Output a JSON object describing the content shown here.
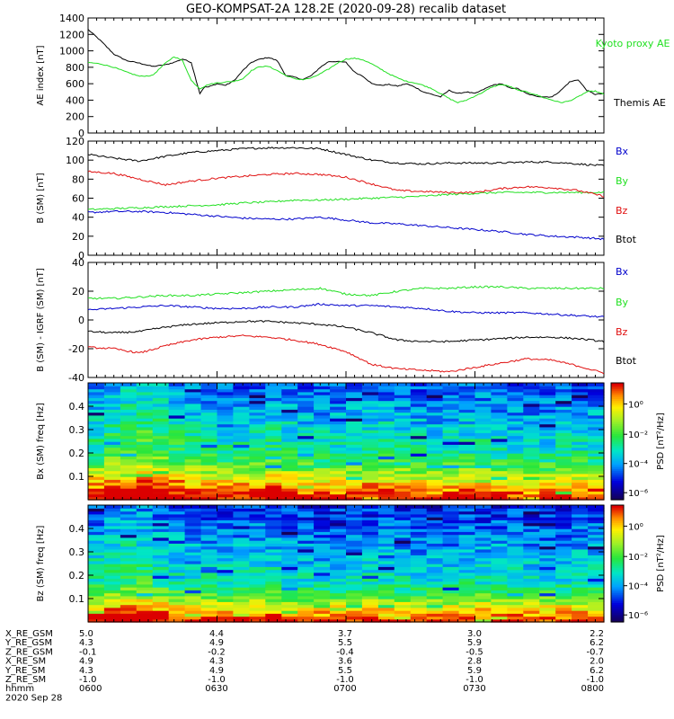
{
  "title": "GEO-KOMPSAT-2A 128.2E (2020-09-28) recalib dataset",
  "colors": {
    "black": "#000000",
    "green": "#22e022",
    "red": "#e01010",
    "blue": "#0000cc"
  },
  "chart_data": [
    {
      "type": "line",
      "panel": "ae",
      "ylabel": "AE index [nT]",
      "ylim": [
        0,
        1400
      ],
      "yticks": [
        "0",
        "200",
        "400",
        "600",
        "800",
        "1000",
        "1200",
        "1400"
      ],
      "xlim": [
        0,
        120
      ],
      "series": [
        {
          "name": "Themis AE",
          "color": "#000000",
          "x": [
            0,
            3,
            6,
            9,
            12,
            15,
            18,
            20,
            22,
            24,
            26,
            27,
            28,
            30,
            32,
            34,
            36,
            38,
            40,
            42,
            44,
            46,
            48,
            50,
            52,
            54,
            56,
            58,
            60,
            62,
            64,
            66,
            68,
            70,
            72,
            74,
            76,
            78,
            80,
            82,
            84,
            86,
            88,
            90,
            92,
            94,
            96,
            98,
            100,
            102,
            104,
            106,
            108,
            110,
            112,
            114,
            116,
            118,
            120
          ],
          "y": [
            1260,
            1120,
            960,
            880,
            850,
            810,
            830,
            860,
            900,
            860,
            480,
            560,
            560,
            600,
            580,
            640,
            760,
            860,
            900,
            920,
            880,
            700,
            680,
            650,
            700,
            800,
            870,
            870,
            860,
            740,
            690,
            600,
            580,
            590,
            570,
            600,
            560,
            500,
            470,
            440,
            520,
            480,
            500,
            480,
            530,
            580,
            600,
            550,
            540,
            480,
            450,
            440,
            440,
            520,
            620,
            650,
            520,
            470,
            480
          ]
        },
        {
          "name": "Kyoto proxy AE",
          "color": "#22e022",
          "x": [
            0,
            3,
            6,
            9,
            12,
            15,
            18,
            20,
            22,
            24,
            26,
            28,
            30,
            32,
            34,
            36,
            38,
            40,
            42,
            44,
            46,
            48,
            50,
            52,
            54,
            56,
            58,
            60,
            62,
            64,
            66,
            68,
            70,
            72,
            74,
            76,
            78,
            80,
            82,
            84,
            86,
            88,
            90,
            92,
            94,
            96,
            98,
            100,
            102,
            104,
            106,
            108,
            110,
            112,
            114,
            116,
            118,
            120
          ],
          "y": [
            860,
            840,
            800,
            740,
            690,
            700,
            850,
            930,
            880,
            640,
            540,
            590,
            610,
            620,
            630,
            660,
            760,
            810,
            810,
            760,
            700,
            660,
            650,
            670,
            720,
            780,
            850,
            900,
            910,
            890,
            840,
            780,
            720,
            670,
            630,
            610,
            580,
            540,
            480,
            420,
            370,
            400,
            450,
            500,
            560,
            590,
            570,
            520,
            500,
            470,
            430,
            400,
            370,
            390,
            440,
            500,
            510,
            470
          ]
        }
      ]
    },
    {
      "type": "line",
      "panel": "b",
      "ylabel": "B (SM) [nT]",
      "ylim": [
        0,
        120
      ],
      "yticks": [
        "0",
        "20",
        "40",
        "60",
        "80",
        "100",
        "120"
      ],
      "xlim": [
        0,
        120
      ],
      "legend": [
        "Bx",
        "By",
        "Bz",
        "Btot"
      ],
      "series": [
        {
          "name": "Btot",
          "color": "#000000",
          "x": [
            0,
            6,
            12,
            18,
            24,
            30,
            36,
            42,
            48,
            54,
            60,
            66,
            72,
            78,
            84,
            90,
            96,
            102,
            108,
            114,
            120
          ],
          "y": [
            106,
            102,
            99,
            104,
            108,
            110,
            112,
            113,
            113,
            112,
            106,
            100,
            97,
            96,
            97,
            97,
            97,
            98,
            98,
            96,
            94
          ]
        },
        {
          "name": "Bx",
          "color": "#0000cc",
          "x": [
            0,
            6,
            12,
            18,
            24,
            30,
            36,
            42,
            48,
            54,
            60,
            66,
            72,
            78,
            84,
            90,
            96,
            102,
            108,
            114,
            120
          ],
          "y": [
            45,
            46,
            46,
            45,
            43,
            41,
            39,
            38,
            38,
            40,
            37,
            34,
            33,
            31,
            29,
            27,
            25,
            22,
            20,
            19,
            17
          ]
        },
        {
          "name": "By",
          "color": "#22e022",
          "x": [
            0,
            6,
            12,
            18,
            24,
            30,
            36,
            42,
            48,
            54,
            60,
            66,
            72,
            78,
            84,
            90,
            96,
            102,
            108,
            114,
            120
          ],
          "y": [
            48,
            49,
            50,
            51,
            52,
            53,
            55,
            56,
            58,
            58,
            59,
            60,
            61,
            62,
            64,
            65,
            66,
            66,
            66,
            66,
            66
          ]
        },
        {
          "name": "Bz",
          "color": "#e01010",
          "x": [
            0,
            6,
            12,
            18,
            24,
            30,
            36,
            42,
            48,
            54,
            60,
            66,
            72,
            78,
            84,
            90,
            96,
            102,
            108,
            114,
            120
          ],
          "y": [
            88,
            86,
            80,
            74,
            78,
            81,
            83,
            85,
            86,
            85,
            82,
            75,
            68,
            67,
            66,
            66,
            70,
            72,
            71,
            68,
            62
          ]
        }
      ]
    },
    {
      "type": "line",
      "panel": "db",
      "ylabel": "B (SM) - IGRF (SM) [nT]",
      "ylim": [
        -40,
        40
      ],
      "yticks": [
        "-40",
        "-20",
        "0",
        "20",
        "40"
      ],
      "xlim": [
        0,
        120
      ],
      "legend": [
        "Bx",
        "By",
        "Bz",
        "Btot"
      ],
      "series": [
        {
          "name": "Bx",
          "color": "#0000cc",
          "x": [
            0,
            6,
            12,
            18,
            24,
            30,
            36,
            42,
            48,
            54,
            60,
            66,
            72,
            78,
            84,
            90,
            96,
            102,
            108,
            114,
            120
          ],
          "y": [
            7,
            8,
            9,
            10,
            9,
            8,
            8,
            9,
            9,
            11,
            10,
            10,
            9,
            8,
            6,
            5,
            5,
            5,
            4,
            3,
            2
          ]
        },
        {
          "name": "By",
          "color": "#22e022",
          "x": [
            0,
            6,
            12,
            18,
            24,
            30,
            36,
            42,
            48,
            54,
            60,
            66,
            72,
            78,
            84,
            90,
            96,
            102,
            108,
            114,
            120
          ],
          "y": [
            15,
            15,
            16,
            17,
            17,
            18,
            19,
            20,
            21,
            22,
            18,
            17,
            20,
            22,
            22,
            23,
            23,
            22,
            22,
            22,
            22
          ]
        },
        {
          "name": "Btot",
          "color": "#000000",
          "x": [
            0,
            6,
            12,
            18,
            24,
            30,
            36,
            42,
            48,
            54,
            60,
            66,
            72,
            78,
            84,
            90,
            96,
            102,
            108,
            114,
            120
          ],
          "y": [
            -8,
            -9,
            -8,
            -5,
            -3,
            -2,
            -1,
            -1,
            -2,
            -3,
            -5,
            -9,
            -14,
            -15,
            -15,
            -14,
            -13,
            -12,
            -12,
            -13,
            -15
          ]
        },
        {
          "name": "Bz",
          "color": "#e01010",
          "x": [
            0,
            6,
            12,
            18,
            24,
            30,
            36,
            42,
            48,
            54,
            60,
            66,
            72,
            78,
            84,
            90,
            96,
            102,
            108,
            114,
            120
          ],
          "y": [
            -19,
            -20,
            -23,
            -18,
            -14,
            -12,
            -11,
            -12,
            -14,
            -17,
            -22,
            -31,
            -34,
            -35,
            -36,
            -33,
            -30,
            -27,
            -28,
            -32,
            -37
          ]
        }
      ]
    },
    {
      "type": "heatmap",
      "panel": "bx-spec",
      "ylabel": "Bx (SM) freq [Hz]",
      "ylim": [
        0,
        0.5
      ],
      "yticks": [
        "0.1",
        "0.2",
        "0.3",
        "0.4"
      ],
      "colorbar_label": "PSD [nT²/Hz]",
      "colorbar_ticks": [
        "10⁰",
        "10⁻²",
        "10⁻⁴",
        "10⁻⁶"
      ],
      "x_bins": 32,
      "profile": [
        1.0,
        0.97,
        0.93,
        0.9,
        0.86,
        0.82,
        0.78,
        0.74,
        0.7,
        0.66,
        0.62,
        0.58,
        0.55,
        0.52,
        0.5,
        0.48,
        0.46,
        0.44,
        0.43,
        0.42,
        0.41,
        0.4,
        0.39,
        0.38,
        0.37,
        0.36,
        0.35,
        0.34,
        0.33,
        0.32,
        0.31,
        0.3,
        0.29,
        0.28,
        0.27,
        0.26,
        0.25,
        0.24,
        0.23,
        0.22
      ],
      "time_offset": [
        0.05,
        0.1,
        0.14,
        0.16,
        0.12,
        0.08,
        0.05,
        0.03,
        0.02,
        0.02,
        0.04,
        0.05,
        0.03,
        0.01,
        0.0,
        0.0,
        0.02,
        0.04,
        0.03,
        0.01,
        0.0,
        -0.01,
        0.0,
        0.01,
        0.02,
        0.0,
        -0.01,
        -0.02,
        -0.02,
        -0.01,
        0.0,
        0.0
      ]
    },
    {
      "type": "heatmap",
      "panel": "bz-spec",
      "ylabel": "Bz (SM) freq [Hz]",
      "ylim": [
        0,
        0.5
      ],
      "yticks": [
        "0.1",
        "0.2",
        "0.3",
        "0.4"
      ],
      "colorbar_label": "PSD [nT²/Hz]",
      "colorbar_ticks": [
        "10⁰",
        "10⁻²",
        "10⁻⁴",
        "10⁻⁶"
      ],
      "x_bins": 32,
      "profile": [
        1.0,
        0.96,
        0.91,
        0.86,
        0.81,
        0.76,
        0.71,
        0.66,
        0.61,
        0.57,
        0.53,
        0.5,
        0.47,
        0.45,
        0.43,
        0.42,
        0.41,
        0.4,
        0.39,
        0.38,
        0.37,
        0.36,
        0.35,
        0.34,
        0.33,
        0.32,
        0.31,
        0.3,
        0.29,
        0.28,
        0.27,
        0.26,
        0.25,
        0.24,
        0.23,
        0.22,
        0.21,
        0.2,
        0.19,
        0.18
      ],
      "time_offset": [
        0.04,
        0.08,
        0.1,
        0.09,
        0.06,
        0.03,
        0.02,
        0.01,
        0.0,
        0.01,
        0.02,
        0.02,
        0.0,
        -0.01,
        -0.02,
        -0.02,
        -0.01,
        0.0,
        0.0,
        -0.01,
        -0.02,
        -0.03,
        -0.02,
        -0.01,
        0.0,
        0.0,
        -0.01,
        -0.02,
        -0.02,
        -0.01,
        0.0,
        0.0
      ]
    }
  ],
  "ephemeris": {
    "labels": [
      "X_RE_GSM",
      "Y_RE_GSM",
      "Z_RE_GSM",
      "X_RE_SM",
      "Y_RE_SM",
      "Z_RE_SM",
      "hhmm"
    ],
    "date": "2020 Sep 28",
    "columns": [
      [
        "5.0",
        "4.3",
        "-0.1",
        "4.9",
        "4.3",
        "-1.0",
        "0600"
      ],
      [
        "4.4",
        "4.9",
        "-0.2",
        "4.3",
        "4.9",
        "-1.0",
        "0630"
      ],
      [
        "3.7",
        "5.5",
        "-0.4",
        "3.6",
        "5.5",
        "-1.0",
        "0700"
      ],
      [
        "3.0",
        "5.9",
        "-0.5",
        "2.8",
        "5.9",
        "-1.0",
        "0730"
      ],
      [
        "2.2",
        "6.2",
        "-0.7",
        "2.0",
        "6.2",
        "-1.0",
        "0800"
      ]
    ]
  }
}
